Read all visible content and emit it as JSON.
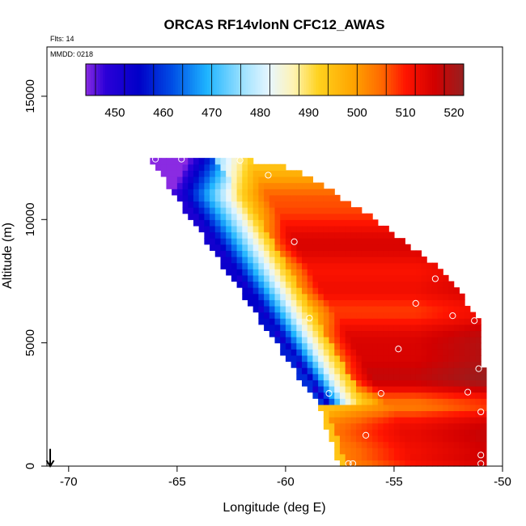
{
  "chart_data": {
    "type": "heatmap",
    "title": "ORCAS RF14vlonN CFC12_AWAS",
    "xlabel": "Longitude (deg E)",
    "ylabel": "Altitude (m)",
    "xlim": [
      -71,
      -50
    ],
    "ylim": [
      0,
      17000
    ],
    "x_ticks": [
      -70,
      -65,
      -60,
      -55,
      -50
    ],
    "y_ticks": [
      0,
      5000,
      10000,
      15000
    ],
    "annotations": {
      "flights": "Flts: 14",
      "date": "MMDD: 0218"
    },
    "colorbar": {
      "range": [
        444,
        522
      ],
      "ticks": [
        450,
        460,
        470,
        480,
        490,
        500,
        510,
        520
      ],
      "stops": [
        {
          "value": 444,
          "color": "#8a2be2"
        },
        {
          "value": 448,
          "color": "#2c00d8"
        },
        {
          "value": 455,
          "color": "#0000c8"
        },
        {
          "value": 462,
          "color": "#0050e6"
        },
        {
          "value": 469,
          "color": "#1eb4ff"
        },
        {
          "value": 477,
          "color": "#a6e4ff"
        },
        {
          "value": 482,
          "color": "#e8f6ff"
        },
        {
          "value": 487,
          "color": "#fff3b0"
        },
        {
          "value": 492,
          "color": "#ffd21e"
        },
        {
          "value": 499,
          "color": "#ffa500"
        },
        {
          "value": 505,
          "color": "#ff6a00"
        },
        {
          "value": 510,
          "color": "#ff1400"
        },
        {
          "value": 516,
          "color": "#d20000"
        },
        {
          "value": 522,
          "color": "#962020"
        }
      ]
    },
    "field_model": {
      "valid_region": {
        "top_altitude": 12500,
        "left_edge_lon_at_top": -66.3,
        "left_edge_lon_at_bottom": -58.5,
        "left_edge_alt_of_bottom": 2500,
        "lower_left_edge": [
          [
            -58.5,
            2500
          ],
          [
            -57.5,
            0
          ]
        ],
        "right_edge": [
          [
            -62.2,
            12500
          ],
          [
            -59.5,
            12000
          ],
          [
            -56,
            10000
          ],
          [
            -53,
            8000
          ],
          [
            -51.2,
            6000
          ],
          [
            -51,
            4000
          ],
          [
            -50.9,
            0
          ]
        ]
      }
    },
    "sample_points": [
      {
        "lon": -66.0,
        "alt": 12450
      },
      {
        "lon": -64.8,
        "alt": 12450
      },
      {
        "lon": -62.1,
        "alt": 12400
      },
      {
        "lon": -60.8,
        "alt": 11800
      },
      {
        "lon": -59.6,
        "alt": 9100
      },
      {
        "lon": -53.1,
        "alt": 7600
      },
      {
        "lon": -54.0,
        "alt": 6600
      },
      {
        "lon": -58.9,
        "alt": 6000
      },
      {
        "lon": -52.3,
        "alt": 6100
      },
      {
        "lon": -51.3,
        "alt": 5900
      },
      {
        "lon": -54.8,
        "alt": 4750
      },
      {
        "lon": -51.1,
        "alt": 3950
      },
      {
        "lon": -58.0,
        "alt": 2950
      },
      {
        "lon": -55.6,
        "alt": 2950
      },
      {
        "lon": -51.6,
        "alt": 3000
      },
      {
        "lon": -51.0,
        "alt": 2200
      },
      {
        "lon": -56.3,
        "alt": 1250
      },
      {
        "lon": -51.0,
        "alt": 450
      },
      {
        "lon": -57.1,
        "alt": 100
      },
      {
        "lon": -56.9,
        "alt": 100
      },
      {
        "lon": -51.0,
        "alt": 100
      }
    ],
    "arrow_marker": {
      "lon": -70.85,
      "alt_from": 700,
      "alt_to": 0
    }
  }
}
